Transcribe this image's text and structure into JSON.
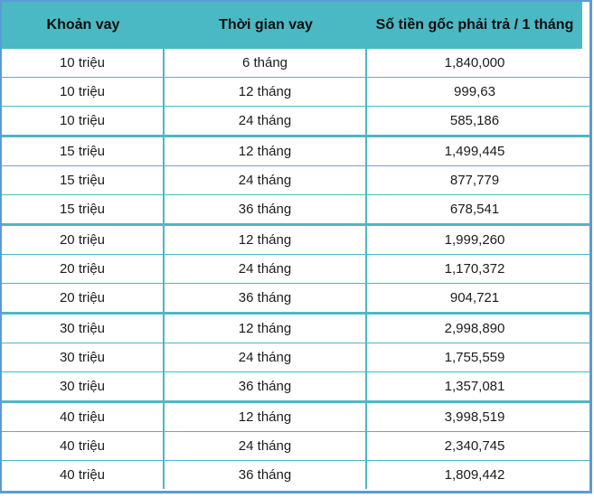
{
  "table": {
    "headers": [
      "Khoản vay",
      "Thời gian vay",
      "Số tiền gốc phải trả / 1 tháng"
    ],
    "groups": [
      {
        "loan": "10 triệu",
        "rows": [
          {
            "term": "6 tháng",
            "amount": "1,840,000"
          },
          {
            "term": "12 tháng",
            "amount": "999,63"
          },
          {
            "term": "24 tháng",
            "amount": "585,186"
          }
        ]
      },
      {
        "loan": "15 triệu",
        "rows": [
          {
            "term": "12 tháng",
            "amount": "1,499,445"
          },
          {
            "term": "24 tháng",
            "amount": "877,779"
          },
          {
            "term": "36 tháng",
            "amount": "678,541"
          }
        ]
      },
      {
        "loan": "20 triệu",
        "rows": [
          {
            "term": "12 tháng",
            "amount": "1,999,260"
          },
          {
            "term": "24 tháng",
            "amount": "1,170,372"
          },
          {
            "term": "36 tháng",
            "amount": "904,721"
          }
        ]
      },
      {
        "loan": "30 triệu",
        "rows": [
          {
            "term": "12 tháng",
            "amount": "2,998,890"
          },
          {
            "term": "24 tháng",
            "amount": "1,755,559"
          },
          {
            "term": "36 tháng",
            "amount": "1,357,081"
          }
        ]
      },
      {
        "loan": "40 triệu",
        "rows": [
          {
            "term": "12 tháng",
            "amount": "3,998,519"
          },
          {
            "term": "24 tháng",
            "amount": "2,340,745"
          },
          {
            "term": "36 tháng",
            "amount": "1,809,442"
          }
        ]
      }
    ]
  },
  "colors": {
    "header_bg": "#4bb9c3",
    "divider": "#4bb9c3",
    "outer_border": "#5b9bd5",
    "header_text": "#0d0d0d",
    "body_text": "#1c1c1c"
  }
}
